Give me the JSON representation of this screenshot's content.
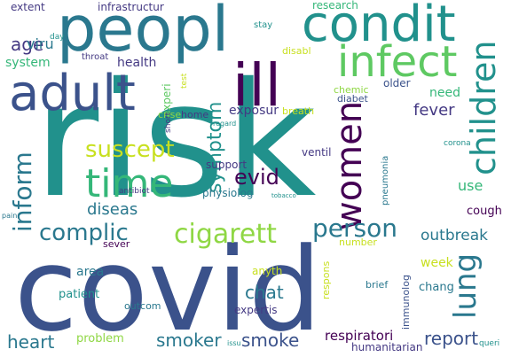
{
  "palette": {
    "yellow": "#c8e020",
    "lime": "#8fd744",
    "green": "#5ec962",
    "mint": "#35b779",
    "teal": "#21918c",
    "cyan": "#2a788e",
    "blue": "#3b528b",
    "indigo": "#443983",
    "purple": "#440154"
  },
  "words": [
    {
      "text": "risk",
      "color": "teal"
    },
    {
      "text": "covid",
      "color": "blue"
    },
    {
      "text": "peopl",
      "color": "cyan"
    },
    {
      "text": "condit",
      "color": "teal"
    },
    {
      "text": "adult",
      "color": "blue"
    },
    {
      "text": "ill",
      "color": "purple"
    },
    {
      "text": "infect",
      "color": "green"
    },
    {
      "text": "children",
      "color": "teal"
    },
    {
      "text": "time",
      "color": "mint"
    },
    {
      "text": "women",
      "color": "purple"
    },
    {
      "text": "lung",
      "color": "cyan"
    },
    {
      "text": "cigarett",
      "color": "lime"
    },
    {
      "text": "complic",
      "color": "cyan"
    },
    {
      "text": "person",
      "color": "cyan"
    },
    {
      "text": "inform",
      "color": "cyan"
    },
    {
      "text": "suscept",
      "color": "yellow"
    },
    {
      "text": "symptom",
      "color": "teal"
    },
    {
      "text": "evid",
      "color": "purple"
    },
    {
      "text": "smoker",
      "color": "cyan"
    },
    {
      "text": "smoke",
      "color": "blue"
    },
    {
      "text": "report",
      "color": "blue"
    },
    {
      "text": "heart",
      "color": "cyan"
    },
    {
      "text": "chat",
      "color": "cyan"
    },
    {
      "text": "outbreak",
      "color": "cyan"
    },
    {
      "text": "age",
      "color": "indigo"
    },
    {
      "text": "fever",
      "color": "indigo"
    },
    {
      "text": "diseas",
      "color": "cyan"
    },
    {
      "text": "viru",
      "color": "cyan"
    },
    {
      "text": "system",
      "color": "mint"
    },
    {
      "text": "respiratori",
      "color": "purple"
    },
    {
      "text": "use",
      "color": "mint"
    },
    {
      "text": "exposur",
      "color": "indigo"
    },
    {
      "text": "health",
      "color": "indigo"
    },
    {
      "text": "extent",
      "color": "indigo"
    },
    {
      "text": "infrastructur",
      "color": "indigo"
    },
    {
      "text": "research",
      "color": "mint"
    },
    {
      "text": "need",
      "color": "mint"
    },
    {
      "text": "older",
      "color": "blue"
    },
    {
      "text": "area",
      "color": "cyan"
    },
    {
      "text": "week",
      "color": "yellow"
    },
    {
      "text": "patient",
      "color": "teal"
    },
    {
      "text": "problem",
      "color": "lime"
    },
    {
      "text": "cough",
      "color": "purple"
    },
    {
      "text": "chang",
      "color": "cyan"
    },
    {
      "text": "expertis",
      "color": "indigo"
    },
    {
      "text": "anyth",
      "color": "yellow"
    },
    {
      "text": "support",
      "color": "indigo"
    },
    {
      "text": "physiolog",
      "color": "cyan"
    },
    {
      "text": "experi",
      "color": "green"
    },
    {
      "text": "ventil",
      "color": "indigo"
    },
    {
      "text": "immunolog",
      "color": "blue"
    },
    {
      "text": "humanitarian",
      "color": "indigo"
    },
    {
      "text": "outcom",
      "color": "cyan"
    },
    {
      "text": "diabet",
      "color": "blue"
    },
    {
      "text": "chemic",
      "color": "lime"
    },
    {
      "text": "breath",
      "color": "yellow"
    },
    {
      "text": "home",
      "color": "indigo"
    },
    {
      "text": "crise",
      "color": "lime"
    },
    {
      "text": "disabl",
      "color": "yellow"
    },
    {
      "text": "number",
      "color": "yellow"
    },
    {
      "text": "respons",
      "color": "yellow"
    },
    {
      "text": "brief",
      "color": "cyan"
    },
    {
      "text": "sever",
      "color": "purple"
    },
    {
      "text": "pneumonia",
      "color": "cyan"
    },
    {
      "text": "short",
      "color": "indigo"
    },
    {
      "text": "throat",
      "color": "indigo"
    },
    {
      "text": "test",
      "color": "yellow"
    },
    {
      "text": "stay",
      "color": "teal"
    },
    {
      "text": "day",
      "color": "teal"
    },
    {
      "text": "regard",
      "color": "teal"
    },
    {
      "text": "antibiot",
      "color": "indigo"
    },
    {
      "text": "corona",
      "color": "teal"
    },
    {
      "text": "tobacco",
      "color": "teal"
    },
    {
      "text": "pain",
      "color": "cyan"
    },
    {
      "text": "issu",
      "color": "teal"
    },
    {
      "text": "queri",
      "color": "teal"
    }
  ]
}
